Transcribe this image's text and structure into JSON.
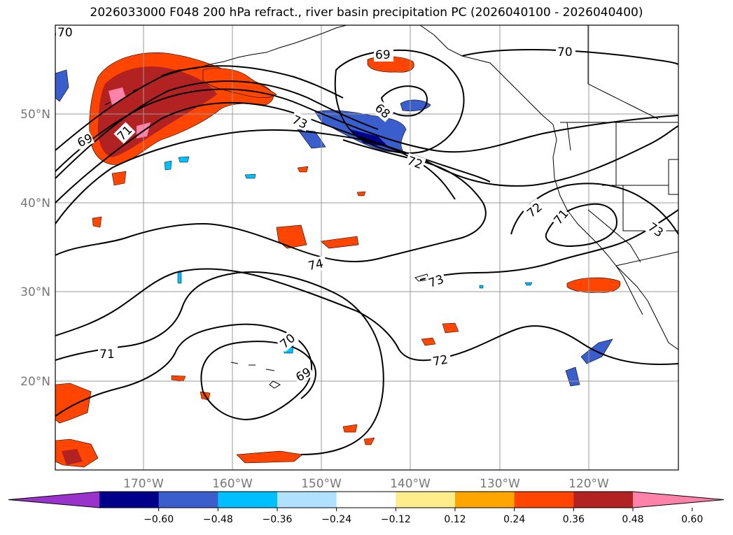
{
  "title": "2026033000 F048 200 hPa refract., river basin precipitation PC (2026040100 - 2026040400)",
  "lon_ticks": [
    "170°W",
    "160°W",
    "150°W",
    "140°W",
    "130°W",
    "120°W"
  ],
  "lat_ticks": [
    "50°N",
    "40°N",
    "30°N",
    "20°N"
  ],
  "contour_labels": [
    "70",
    "69",
    "71",
    "73",
    "72",
    "74",
    "70",
    "69",
    "71",
    "72",
    "71",
    "73",
    "72",
    "73",
    "69",
    "68",
    "70"
  ],
  "colorbar": {
    "colors": [
      "#9933cc",
      "#00008b",
      "#3a5fcd",
      "#00bfff",
      "#b0e2ff",
      "#ffffff",
      "#ffec8b",
      "#ffa500",
      "#ff4500",
      "#b22222",
      "#ff82ab"
    ],
    "labels": [
      "−0.60",
      "−0.48",
      "−0.36",
      "−0.24",
      "−0.12",
      "0.12",
      "0.24",
      "0.36",
      "0.48",
      "0.60"
    ]
  }
}
